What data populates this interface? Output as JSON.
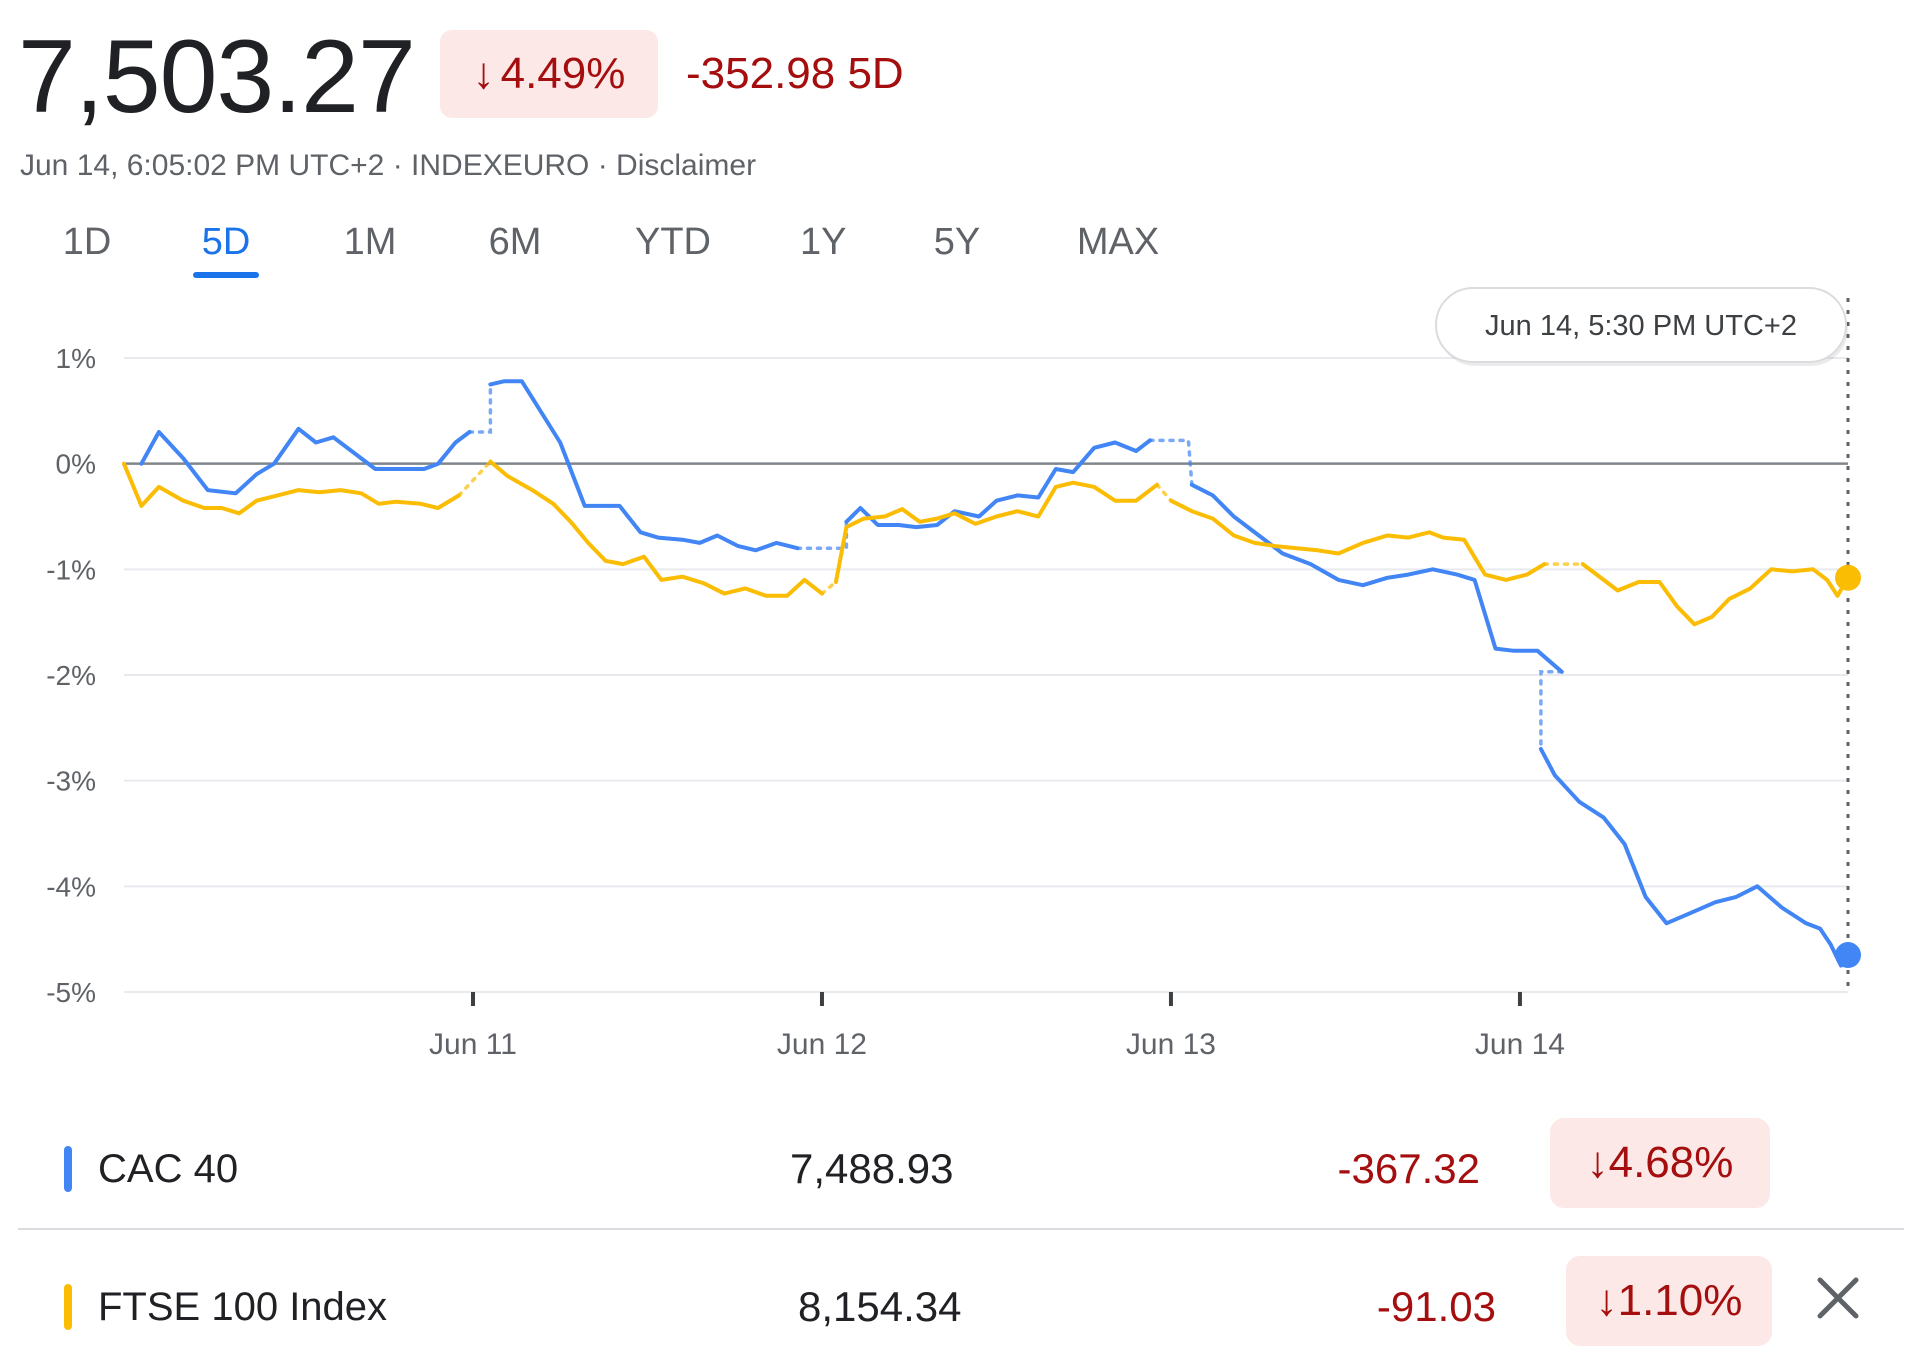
{
  "header": {
    "price": "7,503.27",
    "change_percent": "4.49%",
    "change_arrow": "↓",
    "change_abs": "-352.98 5D",
    "meta": "Jun 14, 6:05:02 PM UTC+2 · INDEXEURO · Disclaimer"
  },
  "tabs": [
    {
      "label": "1D",
      "active": false
    },
    {
      "label": "5D",
      "active": true
    },
    {
      "label": "1M",
      "active": false
    },
    {
      "label": "6M",
      "active": false
    },
    {
      "label": "YTD",
      "active": false
    },
    {
      "label": "1Y",
      "active": false
    },
    {
      "label": "5Y",
      "active": false
    },
    {
      "label": "MAX",
      "active": false
    }
  ],
  "tooltip": "Jun 14, 5:30 PM UTC+2",
  "colors": {
    "blue": "#4285f4",
    "yellow": "#fbbc04",
    "down": "#a50e0e",
    "badge_bg": "#fce8e6",
    "grid": "#e8eaed",
    "axis": "#80868b"
  },
  "chart_data": {
    "type": "line",
    "ylim": [
      -5,
      1
    ],
    "yticks": [
      "1%",
      "0%",
      "-1%",
      "-2%",
      "-3%",
      "-4%",
      "-5%"
    ],
    "x_labels": [
      "Jun 11",
      "Jun 12",
      "Jun 13",
      "Jun 14"
    ],
    "x_domain": [
      0,
      4.94
    ],
    "x_ticks": [
      1,
      2,
      3,
      4
    ],
    "series": [
      {
        "name": "CAC 40",
        "color": "blue",
        "segments": [
          [
            [
              0.05,
              0.0
            ],
            [
              0.1,
              0.3
            ],
            [
              0.17,
              0.05
            ],
            [
              0.24,
              -0.25
            ],
            [
              0.32,
              -0.28
            ],
            [
              0.38,
              -0.1
            ],
            [
              0.43,
              0.0
            ],
            [
              0.5,
              0.33
            ],
            [
              0.55,
              0.2
            ],
            [
              0.6,
              0.25
            ],
            [
              0.66,
              0.1
            ],
            [
              0.72,
              -0.05
            ],
            [
              0.8,
              -0.05
            ],
            [
              0.86,
              -0.05
            ],
            [
              0.9,
              0.0
            ],
            [
              0.95,
              0.2
            ],
            [
              0.99,
              0.3
            ]
          ],
          [
            [
              1.05,
              0.75
            ],
            [
              1.09,
              0.78
            ],
            [
              1.14,
              0.78
            ],
            [
              1.25,
              0.2
            ],
            [
              1.32,
              -0.4
            ],
            [
              1.42,
              -0.4
            ],
            [
              1.48,
              -0.65
            ],
            [
              1.53,
              -0.7
            ],
            [
              1.6,
              -0.72
            ],
            [
              1.65,
              -0.75
            ],
            [
              1.7,
              -0.68
            ],
            [
              1.76,
              -0.78
            ],
            [
              1.81,
              -0.82
            ],
            [
              1.87,
              -0.75
            ],
            [
              1.93,
              -0.8
            ]
          ],
          [
            [
              2.07,
              -0.55
            ],
            [
              2.11,
              -0.42
            ],
            [
              2.16,
              -0.58
            ],
            [
              2.22,
              -0.58
            ],
            [
              2.27,
              -0.6
            ],
            [
              2.33,
              -0.58
            ],
            [
              2.38,
              -0.45
            ],
            [
              2.45,
              -0.5
            ],
            [
              2.5,
              -0.35
            ],
            [
              2.56,
              -0.3
            ],
            [
              2.62,
              -0.32
            ],
            [
              2.67,
              -0.05
            ],
            [
              2.72,
              -0.08
            ],
            [
              2.78,
              0.15
            ],
            [
              2.84,
              0.2
            ],
            [
              2.9,
              0.12
            ],
            [
              2.94,
              0.22
            ]
          ],
          [
            [
              3.06,
              -0.2
            ],
            [
              3.12,
              -0.3
            ],
            [
              3.18,
              -0.5
            ],
            [
              3.26,
              -0.7
            ],
            [
              3.32,
              -0.85
            ],
            [
              3.4,
              -0.95
            ],
            [
              3.48,
              -1.1
            ],
            [
              3.55,
              -1.15
            ],
            [
              3.62,
              -1.08
            ],
            [
              3.68,
              -1.05
            ],
            [
              3.75,
              -1.0
            ],
            [
              3.82,
              -1.05
            ],
            [
              3.87,
              -1.1
            ],
            [
              3.93,
              -1.75
            ],
            [
              3.98,
              -1.77
            ],
            [
              4.05,
              -1.77
            ],
            [
              4.12,
              -1.97
            ]
          ],
          [
            [
              4.06,
              -2.7
            ],
            [
              4.1,
              -2.95
            ],
            [
              4.17,
              -3.2
            ],
            [
              4.24,
              -3.35
            ],
            [
              4.3,
              -3.6
            ],
            [
              4.36,
              -4.1
            ],
            [
              4.42,
              -4.35
            ],
            [
              4.49,
              -4.25
            ],
            [
              4.56,
              -4.15
            ],
            [
              4.62,
              -4.1
            ],
            [
              4.68,
              -4.0
            ],
            [
              4.75,
              -4.2
            ],
            [
              4.82,
              -4.35
            ],
            [
              4.86,
              -4.4
            ],
            [
              4.89,
              -4.55
            ],
            [
              4.92,
              -4.75
            ],
            [
              4.94,
              -4.65
            ]
          ]
        ],
        "gaps": [
          [
            [
              0.99,
              0.3
            ],
            [
              1.05,
              0.3
            ],
            [
              1.05,
              0.75
            ]
          ],
          [
            [
              1.93,
              -0.8
            ],
            [
              2.07,
              -0.8
            ],
            [
              2.07,
              -0.55
            ]
          ],
          [
            [
              2.94,
              0.22
            ],
            [
              3.05,
              0.22
            ],
            [
              3.06,
              -0.2
            ]
          ],
          [
            [
              4.12,
              -1.97
            ],
            [
              4.06,
              -1.97
            ],
            [
              4.06,
              -2.7
            ]
          ]
        ],
        "last": [
          4.94,
          -4.65
        ]
      },
      {
        "name": "FTSE 100 Index",
        "color": "yellow",
        "segments": [
          [
            [
              0.0,
              0.0
            ],
            [
              0.05,
              -0.4
            ],
            [
              0.1,
              -0.22
            ],
            [
              0.17,
              -0.35
            ],
            [
              0.23,
              -0.42
            ],
            [
              0.28,
              -0.42
            ],
            [
              0.33,
              -0.47
            ],
            [
              0.38,
              -0.35
            ],
            [
              0.44,
              -0.3
            ],
            [
              0.5,
              -0.25
            ],
            [
              0.56,
              -0.27
            ],
            [
              0.62,
              -0.25
            ],
            [
              0.68,
              -0.28
            ],
            [
              0.73,
              -0.38
            ],
            [
              0.78,
              -0.36
            ],
            [
              0.85,
              -0.38
            ],
            [
              0.9,
              -0.42
            ],
            [
              0.96,
              -0.3
            ]
          ],
          [
            [
              1.05,
              0.02
            ],
            [
              1.1,
              -0.12
            ],
            [
              1.17,
              -0.25
            ],
            [
              1.23,
              -0.38
            ],
            [
              1.28,
              -0.55
            ],
            [
              1.33,
              -0.75
            ],
            [
              1.38,
              -0.92
            ],
            [
              1.43,
              -0.95
            ],
            [
              1.49,
              -0.88
            ],
            [
              1.54,
              -1.1
            ],
            [
              1.6,
              -1.07
            ],
            [
              1.66,
              -1.13
            ],
            [
              1.72,
              -1.23
            ],
            [
              1.78,
              -1.18
            ],
            [
              1.84,
              -1.25
            ],
            [
              1.9,
              -1.25
            ],
            [
              1.95,
              -1.1
            ],
            [
              2.0,
              -1.23
            ]
          ],
          [
            [
              2.04,
              -1.12
            ],
            [
              2.07,
              -0.6
            ],
            [
              2.12,
              -0.52
            ],
            [
              2.18,
              -0.5
            ],
            [
              2.23,
              -0.43
            ],
            [
              2.28,
              -0.55
            ],
            [
              2.33,
              -0.52
            ],
            [
              2.38,
              -0.47
            ],
            [
              2.44,
              -0.57
            ],
            [
              2.5,
              -0.5
            ],
            [
              2.56,
              -0.45
            ],
            [
              2.62,
              -0.5
            ],
            [
              2.67,
              -0.22
            ],
            [
              2.72,
              -0.18
            ],
            [
              2.78,
              -0.22
            ],
            [
              2.84,
              -0.35
            ],
            [
              2.9,
              -0.35
            ],
            [
              2.96,
              -0.2
            ]
          ],
          [
            [
              3.0,
              -0.35
            ],
            [
              3.06,
              -0.45
            ],
            [
              3.12,
              -0.52
            ],
            [
              3.18,
              -0.68
            ],
            [
              3.24,
              -0.75
            ],
            [
              3.3,
              -0.78
            ],
            [
              3.36,
              -0.8
            ],
            [
              3.42,
              -0.82
            ],
            [
              3.48,
              -0.85
            ],
            [
              3.55,
              -0.75
            ],
            [
              3.62,
              -0.68
            ],
            [
              3.68,
              -0.7
            ],
            [
              3.74,
              -0.65
            ],
            [
              3.78,
              -0.7
            ],
            [
              3.84,
              -0.72
            ],
            [
              3.9,
              -1.05
            ],
            [
              3.96,
              -1.1
            ],
            [
              4.02,
              -1.05
            ],
            [
              4.07,
              -0.95
            ]
          ],
          [
            [
              4.18,
              -0.95
            ],
            [
              4.22,
              -1.05
            ],
            [
              4.28,
              -1.2
            ],
            [
              4.34,
              -1.12
            ],
            [
              4.4,
              -1.12
            ],
            [
              4.45,
              -1.35
            ],
            [
              4.5,
              -1.52
            ],
            [
              4.55,
              -1.45
            ],
            [
              4.6,
              -1.28
            ],
            [
              4.66,
              -1.18
            ],
            [
              4.72,
              -1.0
            ],
            [
              4.78,
              -1.02
            ],
            [
              4.84,
              -1.0
            ],
            [
              4.88,
              -1.1
            ],
            [
              4.91,
              -1.25
            ],
            [
              4.94,
              -1.08
            ]
          ]
        ],
        "gaps": [
          [
            [
              0.96,
              -0.3
            ],
            [
              1.05,
              0.02
            ]
          ],
          [
            [
              2.0,
              -1.23
            ],
            [
              2.04,
              -1.12
            ]
          ],
          [
            [
              2.96,
              -0.2
            ],
            [
              3.0,
              -0.35
            ]
          ],
          [
            [
              4.07,
              -0.95
            ],
            [
              4.18,
              -0.95
            ]
          ]
        ],
        "last": [
          4.94,
          -1.08
        ]
      }
    ]
  },
  "legend": [
    {
      "name": "CAC 40",
      "color": "blue",
      "value": "7,488.93",
      "change": "-367.32",
      "pct": "4.68%",
      "arrow": "↓"
    },
    {
      "name": "FTSE 100 Index",
      "color": "yellow",
      "value": "8,154.34",
      "change": "-91.03",
      "pct": "1.10%",
      "arrow": "↓"
    }
  ]
}
